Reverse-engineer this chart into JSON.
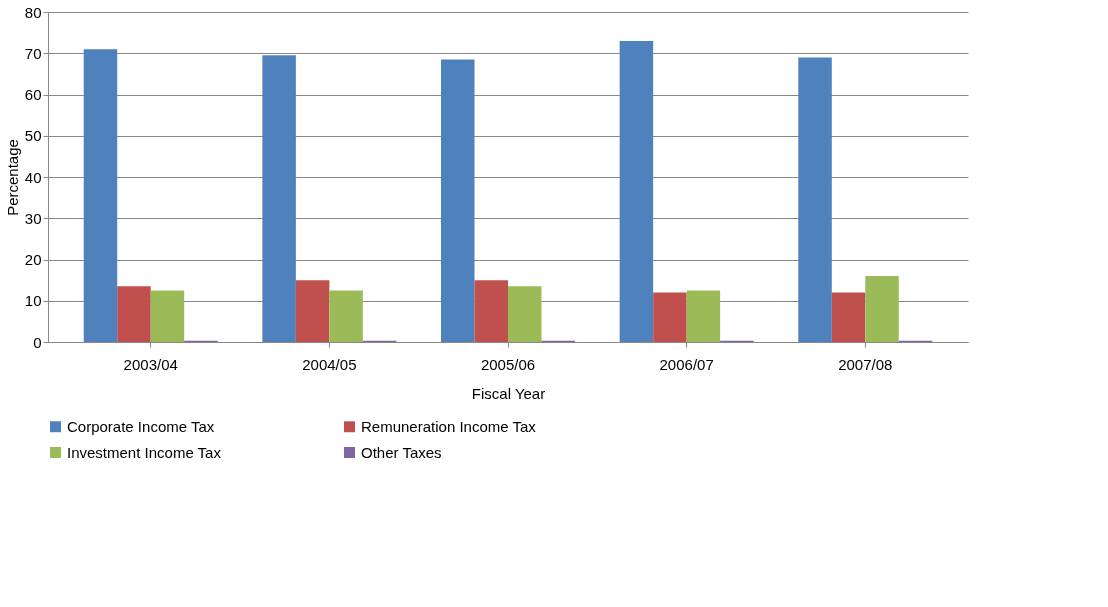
{
  "chart_data": {
    "type": "bar",
    "xlabel": "Fiscal Year",
    "ylabel": "Percentage",
    "categories": [
      "2003/04",
      "2004/05",
      "2005/06",
      "2006/07",
      "2007/08"
    ],
    "series": [
      {
        "name": "Corporate Income Tax",
        "color": "#4f81bd",
        "values": [
          71,
          69.5,
          68.5,
          73,
          69
        ]
      },
      {
        "name": "Remuneration Income Tax",
        "color": "#c0504d",
        "values": [
          13.5,
          15,
          15,
          12,
          12
        ]
      },
      {
        "name": "Investment Income Tax",
        "color": "#9bbb59",
        "values": [
          12.5,
          12.5,
          13.5,
          12.5,
          16
        ]
      },
      {
        "name": "Other Taxes",
        "color": "#8064a2",
        "values": [
          0.3,
          0.3,
          0.3,
          0.3,
          0.3
        ]
      }
    ],
    "ylim": [
      0,
      80
    ],
    "yticks": [
      0,
      10,
      20,
      30,
      40,
      50,
      60,
      70,
      80
    ],
    "grid": "y",
    "legend": "bottom"
  }
}
